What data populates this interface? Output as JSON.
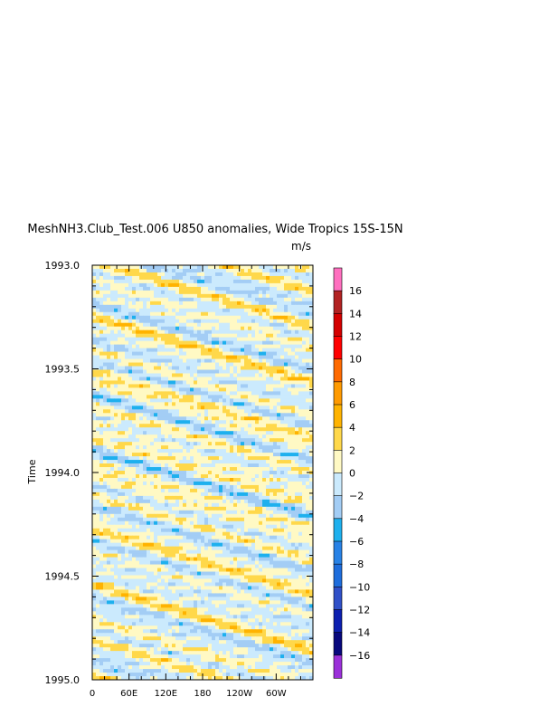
{
  "chart_data": {
    "type": "heatmap",
    "title": "MeshNH3.Club_Test.006 U850 anomalies, Wide Tropics 15S-15N",
    "units": "m/s",
    "ylabel": "Time",
    "xlabel": "",
    "x_ticks": [
      "0",
      "60E",
      "120E",
      "180",
      "120W",
      "60W"
    ],
    "x_tick_values": [
      0,
      60,
      120,
      180,
      240,
      300
    ],
    "xlim": [
      0,
      360
    ],
    "y_ticks": [
      "1993.0",
      "1993.5",
      "1994.0",
      "1994.5",
      "1995.0"
    ],
    "y_tick_values": [
      1993.0,
      1993.5,
      1994.0,
      1994.5,
      1995.0
    ],
    "ylim": [
      1993.0,
      1995.0
    ],
    "y_inverted": true,
    "colorbar": {
      "labels": [
        "16",
        "14",
        "12",
        "10",
        "8",
        "6",
        "4",
        "2",
        "0",
        "-2",
        "-4",
        "-6",
        "-8",
        "-10",
        "-12",
        "-14",
        "-16"
      ],
      "levels": [
        16,
        14,
        12,
        10,
        8,
        6,
        4,
        2,
        0,
        -2,
        -4,
        -6,
        -8,
        -10,
        -12,
        -14,
        -16
      ],
      "colors": [
        "#ff6fbf",
        "#b22222",
        "#d40000",
        "#ff0000",
        "#ff6a00",
        "#ff9a00",
        "#ffb300",
        "#ffd84a",
        "#fff9c4",
        "#cbeafd",
        "#a3cdf5",
        "#1eb0ee",
        "#2882e6",
        "#1e6ddc",
        "#3050c8",
        "#0d1fb0",
        "#08087d",
        "#9b30d9"
      ]
    },
    "notes_visible": ""
  }
}
